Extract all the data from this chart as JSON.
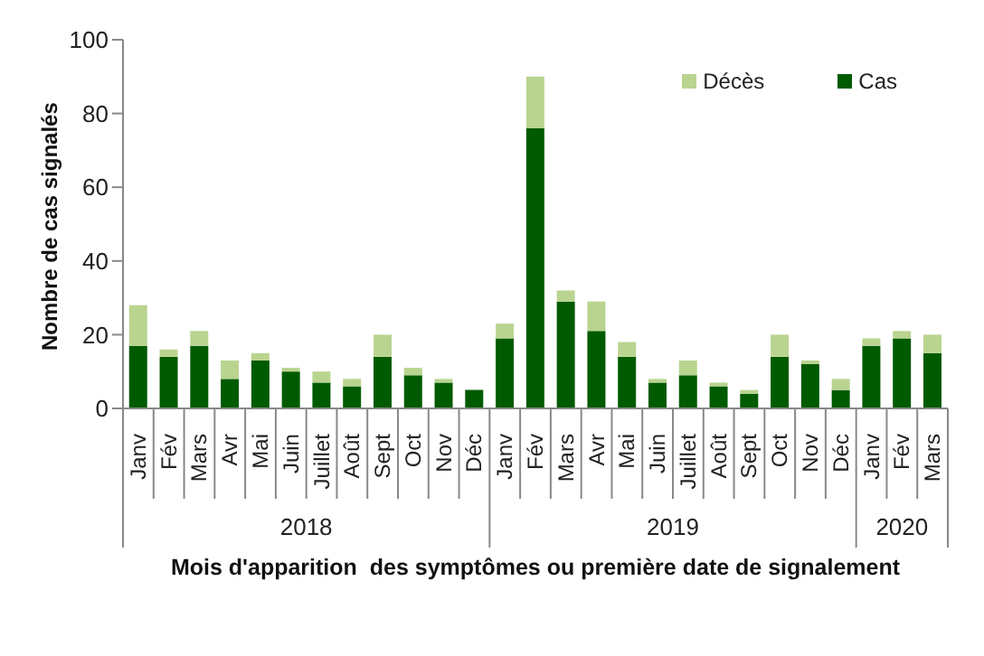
{
  "chart_data": {
    "type": "bar",
    "stacked": true,
    "ylabel": "Nombre de cas signalés",
    "xlabel": "Mois d'apparition  des symptômes ou première date de signalement",
    "categories": [
      "Janv",
      "Fév",
      "Mars",
      "Avr",
      "Mai",
      "Juin",
      "Juillet",
      "Août",
      "Sept",
      "Oct",
      "Nov",
      "Déc",
      "Janv",
      "Fév",
      "Mars",
      "Avr",
      "Mai",
      "Juin",
      "Juillet",
      "Août",
      "Sept",
      "Oct",
      "Nov",
      "Déc",
      "Janv",
      "Fév",
      "Mars"
    ],
    "series": [
      {
        "name": "Cas",
        "color": "#005a00",
        "values": [
          17,
          14,
          17,
          8,
          13,
          10,
          7,
          6,
          14,
          9,
          7,
          5,
          19,
          76,
          29,
          21,
          14,
          7,
          9,
          6,
          4,
          14,
          12,
          5,
          17,
          19,
          15
        ]
      },
      {
        "name": "Décès",
        "color": "#b9d48f",
        "values": [
          11,
          2,
          4,
          5,
          2,
          1,
          3,
          2,
          6,
          2,
          1,
          0,
          4,
          14,
          3,
          8,
          4,
          1,
          4,
          1,
          1,
          6,
          1,
          3,
          2,
          2,
          5
        ]
      }
    ],
    "annotations": [
      "2018",
      "2019",
      "2020"
    ],
    "ylim": [
      0,
      100
    ],
    "yticks": [
      0,
      20,
      40,
      60,
      80,
      100
    ],
    "grid": false,
    "legend": "top right"
  }
}
